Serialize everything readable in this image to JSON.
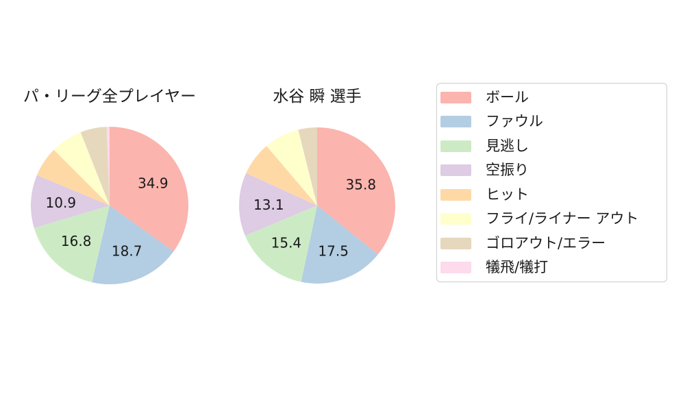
{
  "background": "#ffffff",
  "text_color": "#1a1a1a",
  "legend": {
    "border_color": "#cccccc",
    "items": [
      {
        "label": "ボール",
        "color": "#fbb4ae"
      },
      {
        "label": "ファウル",
        "color": "#b3cde3"
      },
      {
        "label": "見逃し",
        "color": "#ccebc5"
      },
      {
        "label": "空振り",
        "color": "#decbe4"
      },
      {
        "label": "ヒット",
        "color": "#fed9a6"
      },
      {
        "label": "フライ/ライナー アウト",
        "color": "#ffffcc"
      },
      {
        "label": "ゴロアウト/エラー",
        "color": "#e5d8bd"
      },
      {
        "label": "犠飛/犠打",
        "color": "#fddaec"
      }
    ]
  },
  "chart_data": [
    {
      "type": "pie",
      "title": "パ・リーグ全プレイヤー",
      "categories": [
        "ボール",
        "ファウル",
        "見逃し",
        "空振り",
        "ヒット",
        "フライ/ライナー アウト",
        "ゴロアウト/エラー",
        "犠飛/犠打"
      ],
      "values": [
        34.9,
        18.7,
        16.8,
        10.9,
        6.2,
        6.5,
        5.4,
        0.6
      ],
      "shown_value_labels": [
        "34.9",
        "18.7",
        "16.8",
        "10.9"
      ],
      "colors": [
        "#fbb4ae",
        "#b3cde3",
        "#ccebc5",
        "#decbe4",
        "#fed9a6",
        "#ffffcc",
        "#e5d8bd",
        "#fddaec"
      ],
      "start_angle": "top",
      "direction": "clockwise",
      "label_min_pct": 10,
      "legend_position": "right"
    },
    {
      "type": "pie",
      "title": "水谷 瞬 選手",
      "categories": [
        "ボール",
        "ファウル",
        "見逃し",
        "空振り",
        "ヒット",
        "フライ/ライナー アウト",
        "ゴロアウト/エラー",
        "犠飛/犠打"
      ],
      "values": [
        35.8,
        17.5,
        15.4,
        13.1,
        7.0,
        7.3,
        3.9,
        0.0
      ],
      "shown_value_labels": [
        "35.8",
        "17.5",
        "15.4",
        "13.1"
      ],
      "colors": [
        "#fbb4ae",
        "#b3cde3",
        "#ccebc5",
        "#decbe4",
        "#fed9a6",
        "#ffffcc",
        "#e5d8bd",
        "#fddaec"
      ],
      "start_angle": "top",
      "direction": "clockwise",
      "label_min_pct": 10,
      "legend_position": "right"
    }
  ]
}
